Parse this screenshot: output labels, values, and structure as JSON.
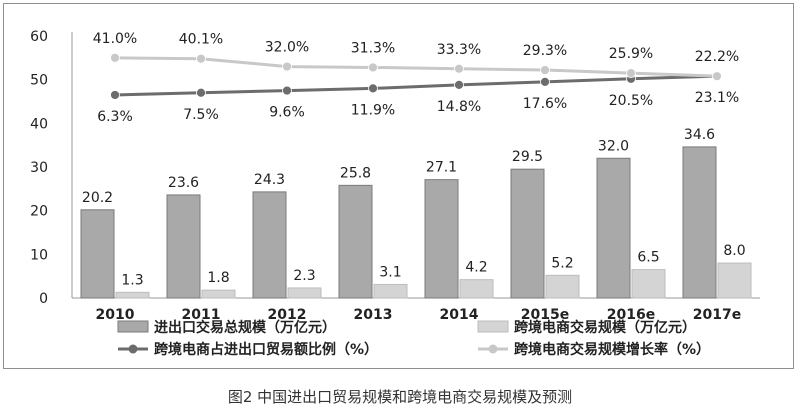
{
  "caption": "图2  中国进出口贸易规模和跨境电商交易规模及预测",
  "colors": {
    "bar_total": "#a9a9a9",
    "bar_total_stroke": "#7a7a7a",
    "bar_cross": "#d4d4d4",
    "bar_cross_stroke": "#bdbdbd",
    "line_share": "#6c6c6c",
    "line_growth": "#c8c8c8",
    "axis_text": "#222222",
    "frame": "#8f8f8f"
  },
  "chart_data": {
    "type": "bar",
    "categories": [
      "2010",
      "2011",
      "2012",
      "2013",
      "2014",
      "2015e",
      "2016e",
      "2017e"
    ],
    "ylim": [
      0,
      60
    ],
    "yticks": [
      "0",
      "10",
      "20",
      "30",
      "40",
      "50",
      "60"
    ],
    "series": [
      {
        "name": "进出口交易总规模（万亿元）",
        "kind": "bar",
        "values": [
          20.2,
          23.6,
          24.3,
          25.8,
          27.1,
          29.5,
          32.0,
          34.6
        ],
        "labels": [
          "20.2",
          "23.6",
          "24.3",
          "25.8",
          "27.1",
          "29.5",
          "32.0",
          "34.6"
        ]
      },
      {
        "name": "跨境电商交易规模（万亿元）",
        "kind": "bar",
        "values": [
          1.3,
          1.8,
          2.3,
          3.1,
          4.2,
          5.2,
          6.5,
          8.0
        ],
        "labels": [
          "1.3",
          "1.8",
          "2.3",
          "3.1",
          "4.2",
          "5.2",
          "6.5",
          "8.0"
        ]
      },
      {
        "name": "跨境电商占进出口贸易额比例（%）",
        "kind": "line",
        "values": [
          6.3,
          7.5,
          9.6,
          11.9,
          14.8,
          17.6,
          20.5,
          23.1
        ],
        "plotted": [
          46.5,
          47,
          47.5,
          48,
          48.8,
          49.5,
          50.2,
          50.8
        ],
        "labels": [
          "6.3%",
          "7.5%",
          "9.6%",
          "11.9%",
          "14.8%",
          "17.6%",
          "20.5%",
          "23.1%"
        ]
      },
      {
        "name": "跨境电商交易规模增长率（%）",
        "kind": "line",
        "values": [
          41.0,
          40.1,
          32.0,
          31.3,
          33.3,
          29.3,
          25.9,
          22.2
        ],
        "plotted": [
          55,
          54.8,
          53,
          52.8,
          52.5,
          52.2,
          51.5,
          50.8
        ],
        "labels": [
          "41.0%",
          "40.1%",
          "32.0%",
          "31.3%",
          "33.3%",
          "29.3%",
          "25.9%",
          "22.2%"
        ]
      }
    ],
    "legend_position": "bottom",
    "grid": false
  }
}
